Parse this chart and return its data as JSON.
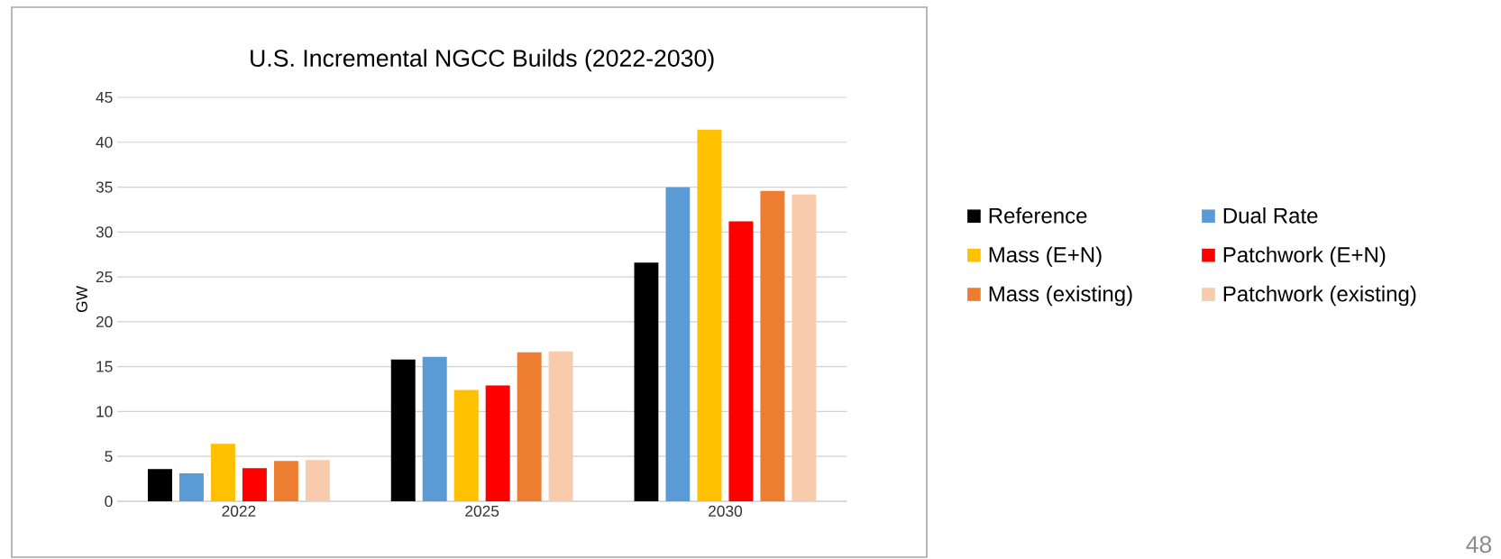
{
  "chart_data": {
    "type": "bar",
    "title": "U.S. Incremental NGCC Builds (2022-2030)",
    "ylabel": "GW",
    "categories": [
      "2022",
      "2025",
      "2030"
    ],
    "series": [
      {
        "name": "Reference",
        "color": "#000000",
        "values": [
          3.6,
          15.8,
          26.6
        ]
      },
      {
        "name": "Dual Rate",
        "color": "#5b9bd5",
        "values": [
          3.1,
          16.1,
          35.0
        ]
      },
      {
        "name": "Mass (E+N)",
        "color": "#ffc000",
        "values": [
          6.4,
          12.4,
          41.4
        ]
      },
      {
        "name": "Patchwork (E+N)",
        "color": "#ff0000",
        "values": [
          3.7,
          12.9,
          31.2
        ]
      },
      {
        "name": "Mass (existing)",
        "color": "#ed7d31",
        "values": [
          4.5,
          16.6,
          34.6
        ]
      },
      {
        "name": "Patchwork (existing)",
        "color": "#f8cbad",
        "values": [
          4.6,
          16.7,
          34.2
        ]
      }
    ],
    "ylim": [
      0,
      45
    ],
    "yticks": [
      0,
      5,
      10,
      15,
      20,
      25,
      30,
      35,
      40,
      45
    ],
    "grid": "y",
    "legend": "right",
    "annotations": [
      "48"
    ]
  }
}
